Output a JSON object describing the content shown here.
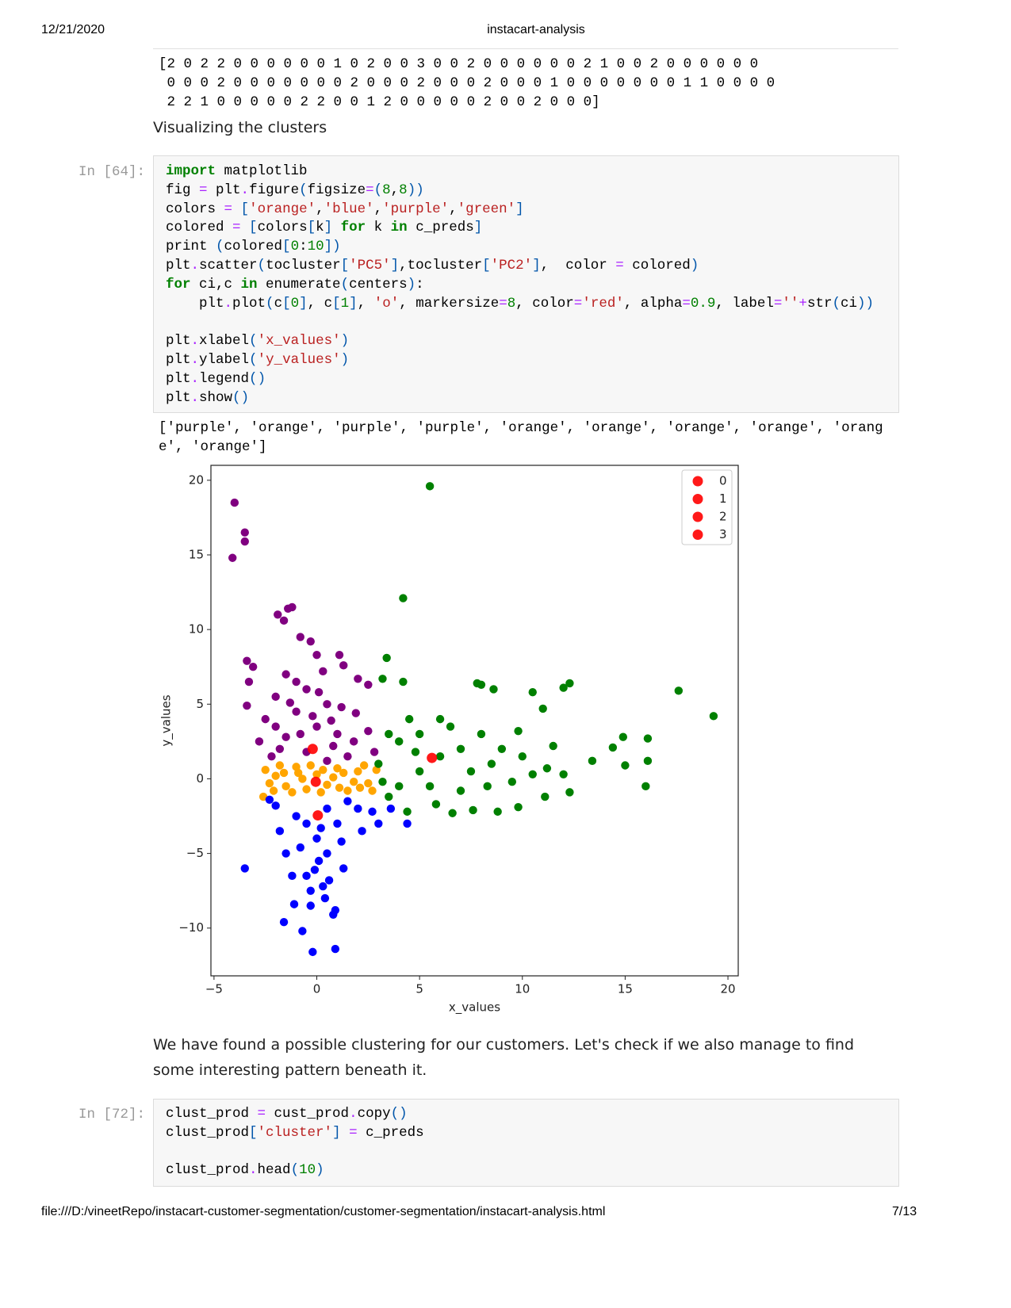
{
  "header": {
    "date": "12/21/2020",
    "title": "instacart-analysis"
  },
  "output_array": "[2 0 2 2 0 0 0 0 0 0 1 0 2 0 0 3 0 0 2 0 0 0 0 0 0 2 1 0 0 2 0 0 0 0 0 0\n 0 0 0 2 0 0 0 0 0 0 0 2 0 0 0 2 0 0 0 2 0 0 0 1 0 0 0 0 0 0 0 1 1 0 0 0 0\n 2 2 1 0 0 0 0 0 2 2 0 0 1 2 0 0 0 0 0 2 0 0 2 0 0 0]",
  "markdown_1": "Visualizing the clusters",
  "cell_1": {
    "prompt": "In [64]:",
    "code": "import matplotlib\nfig = plt.figure(figsize=(8,8))\ncolors = ['orange','blue','purple','green']\ncolored = [colors[k] for k in c_preds]\nprint (colored[0:10])\nplt.scatter(tocluster['PC5'],tocluster['PC2'],  color = colored)\nfor ci,c in enumerate(centers):\n    plt.plot(c[0], c[1], 'o', markersize=8, color='red', alpha=0.9, label=''+str(ci))\n\nplt.xlabel('x_values')\nplt.ylabel('y_values')\nplt.legend()\nplt.show()",
    "output": "['purple', 'orange', 'purple', 'purple', 'orange', 'orange', 'orange', 'orange', 'orang\ne', 'orange']"
  },
  "chart_data": {
    "type": "scatter",
    "xlabel": "x_values",
    "ylabel": "y_values",
    "xlim": [
      -5.15,
      20.5
    ],
    "ylim": [
      -13.2,
      21.0
    ],
    "xticks": [
      {
        "value": -5,
        "label": "−5"
      },
      0,
      5,
      10,
      15,
      20
    ],
    "yticks": [
      {
        "value": -10,
        "label": "−10"
      },
      {
        "value": -5,
        "label": "−5"
      },
      0,
      5,
      10,
      15,
      20
    ],
    "legend": "upper right",
    "series": [
      {
        "color": "#800080",
        "x": [
          -4,
          -3.5,
          -3.5,
          -4.1,
          -1.9,
          -1.4,
          -1.2,
          -1.6,
          -0.8,
          -0.3,
          0,
          1.1,
          1.3,
          -3.4,
          -3.1,
          -3.3,
          -3.4,
          -2.8,
          2.0,
          2.5,
          -1.5,
          -0.5,
          0.5,
          -1,
          0,
          1,
          -2,
          -1.5,
          -0.5,
          0.8,
          1.8,
          2.5,
          -2.2,
          1.5,
          -1,
          0.3,
          -2,
          1.2,
          -0.8,
          0.5,
          2.8,
          -1.8,
          -0.2,
          0.7,
          -1.3,
          1.9,
          -2.5,
          0.1
        ],
        "values": [
          18.5,
          16.5,
          15.9,
          14.8,
          11,
          11.4,
          11.5,
          10.6,
          9.5,
          9.2,
          8.3,
          8.3,
          7.6,
          7.9,
          7.5,
          6.5,
          4.9,
          2.5,
          6.7,
          6.3,
          7,
          6,
          5,
          4.5,
          3.5,
          3,
          3.5,
          2.8,
          1.8,
          2.2,
          2.5,
          3.2,
          1.5,
          1.5,
          6.5,
          7.2,
          5.5,
          4.8,
          3,
          1.2,
          1.8,
          2,
          4.2,
          3.9,
          5.1,
          4.4,
          4.0,
          5.8
        ]
      },
      {
        "color": "#ffa500",
        "x": [
          -2.5,
          -2,
          -1.5,
          -1,
          -0.5,
          0,
          0.5,
          1,
          1.5,
          2,
          2.5,
          2.9,
          -2.6,
          -2.3,
          -1.8,
          -1.2,
          -0.3,
          0.2,
          0.8,
          1.3,
          1.8,
          2.3,
          2.7,
          -0.7,
          0.3,
          -1.6,
          -2.1,
          1.1,
          2.1,
          -0.9
        ],
        "values": [
          0.6,
          0.2,
          -0.5,
          0.8,
          -0.7,
          0.3,
          -0.4,
          0.7,
          -0.8,
          0.5,
          -0.3,
          0.6,
          -1.2,
          -0.3,
          0.9,
          -0.9,
          0.9,
          -0.9,
          0.1,
          0.4,
          -0.2,
          0.9,
          -0.8,
          0,
          0.6,
          0.4,
          -0.8,
          -0.6,
          -0.6,
          0.4
        ]
      },
      {
        "color": "#0000ff",
        "x": [
          -3.5,
          -1.6,
          -1.1,
          -0.7,
          -0.3,
          0.4,
          0.9,
          0.8,
          -0.2,
          0.9,
          1.3,
          -1.8,
          -2,
          -1,
          0,
          0.5,
          -0.5,
          0.3,
          1,
          2,
          2.7,
          3.6,
          4.4,
          3,
          -1.5,
          -0.5,
          0.5,
          1.5,
          -1.2,
          0.1,
          0.6,
          -0.3,
          1.2,
          -2.3,
          2.2,
          -0.8,
          0.2,
          -0.1
        ],
        "values": [
          -6,
          -9.6,
          -8.4,
          -10.2,
          -8.5,
          -8,
          -8.8,
          -9.1,
          -11.6,
          -11.4,
          -6,
          -3.5,
          -1.8,
          -2.5,
          -4,
          -5,
          -6.5,
          -7.2,
          -3,
          -2,
          -2.2,
          -2,
          -3,
          -3,
          -5,
          -3,
          -2,
          -1.5,
          -6.5,
          -5.5,
          -6.8,
          -7.5,
          -4.2,
          -1.4,
          -3.5,
          -4.6,
          -3.3,
          -6.1
        ]
      },
      {
        "color": "#008000",
        "x": [
          5.5,
          4.2,
          3.4,
          3.2,
          4.2,
          7.8,
          8,
          8.6,
          10.5,
          12,
          12.3,
          17.6,
          19.3,
          11,
          9.8,
          11.5,
          13.4,
          14.4,
          14.9,
          15,
          16.1,
          16.1,
          16,
          12.3,
          11.1,
          9.8,
          8.8,
          7.6,
          6.6,
          5.8,
          4.4,
          3.5,
          4,
          5,
          6,
          7,
          8,
          6.5,
          5,
          4,
          3,
          3.5,
          4.5,
          6,
          7.5,
          8.5,
          9.5,
          10.5,
          11.2,
          12,
          7,
          5.5,
          3.2,
          4.8,
          9,
          10,
          8.3
        ],
        "values": [
          19.6,
          12.1,
          8.1,
          6.7,
          6.5,
          6.4,
          6.3,
          6,
          5.8,
          6.1,
          6.4,
          5.9,
          4.2,
          4.7,
          3.2,
          2.2,
          1.2,
          2.1,
          2.8,
          0.9,
          2.7,
          1.2,
          -0.5,
          -0.9,
          -1.2,
          -1.9,
          -2.2,
          -2.1,
          -2.3,
          -1.7,
          -2.2,
          -1.2,
          -0.5,
          0.5,
          1.5,
          2,
          3,
          3.5,
          3,
          2.5,
          1,
          3,
          4,
          4,
          0.5,
          1,
          -0.2,
          0.3,
          0.7,
          0.3,
          -0.8,
          -0.5,
          -0.2,
          1.8,
          2,
          1.5,
          -0.5
        ]
      },
      {
        "name": "0",
        "color": "#ff0000",
        "x": [
          -0.2
        ],
        "values": [
          2.0
        ]
      },
      {
        "name": "1",
        "color": "#ff0000",
        "x": [
          -0.05
        ],
        "values": [
          -0.2
        ]
      },
      {
        "name": "2",
        "color": "#ff0000",
        "x": [
          0.05
        ],
        "values": [
          -2.45
        ]
      },
      {
        "name": "3",
        "color": "#ff0000",
        "x": [
          5.6
        ],
        "values": [
          1.4
        ]
      }
    ]
  },
  "markdown_2": "We have found a possible clustering for our customers. Let's check if we also manage to find some interesting pattern beneath it.",
  "cell_2": {
    "prompt": "In [72]:",
    "code": "clust_prod = cust_prod.copy()\nclust_prod['cluster'] = c_preds\n\nclust_prod.head(10)"
  },
  "footer": {
    "url": "file:///D:/vineetRepo/instacart-customer-segmentation/customer-segmentation/instacart-analysis.html",
    "page": "7/13"
  }
}
